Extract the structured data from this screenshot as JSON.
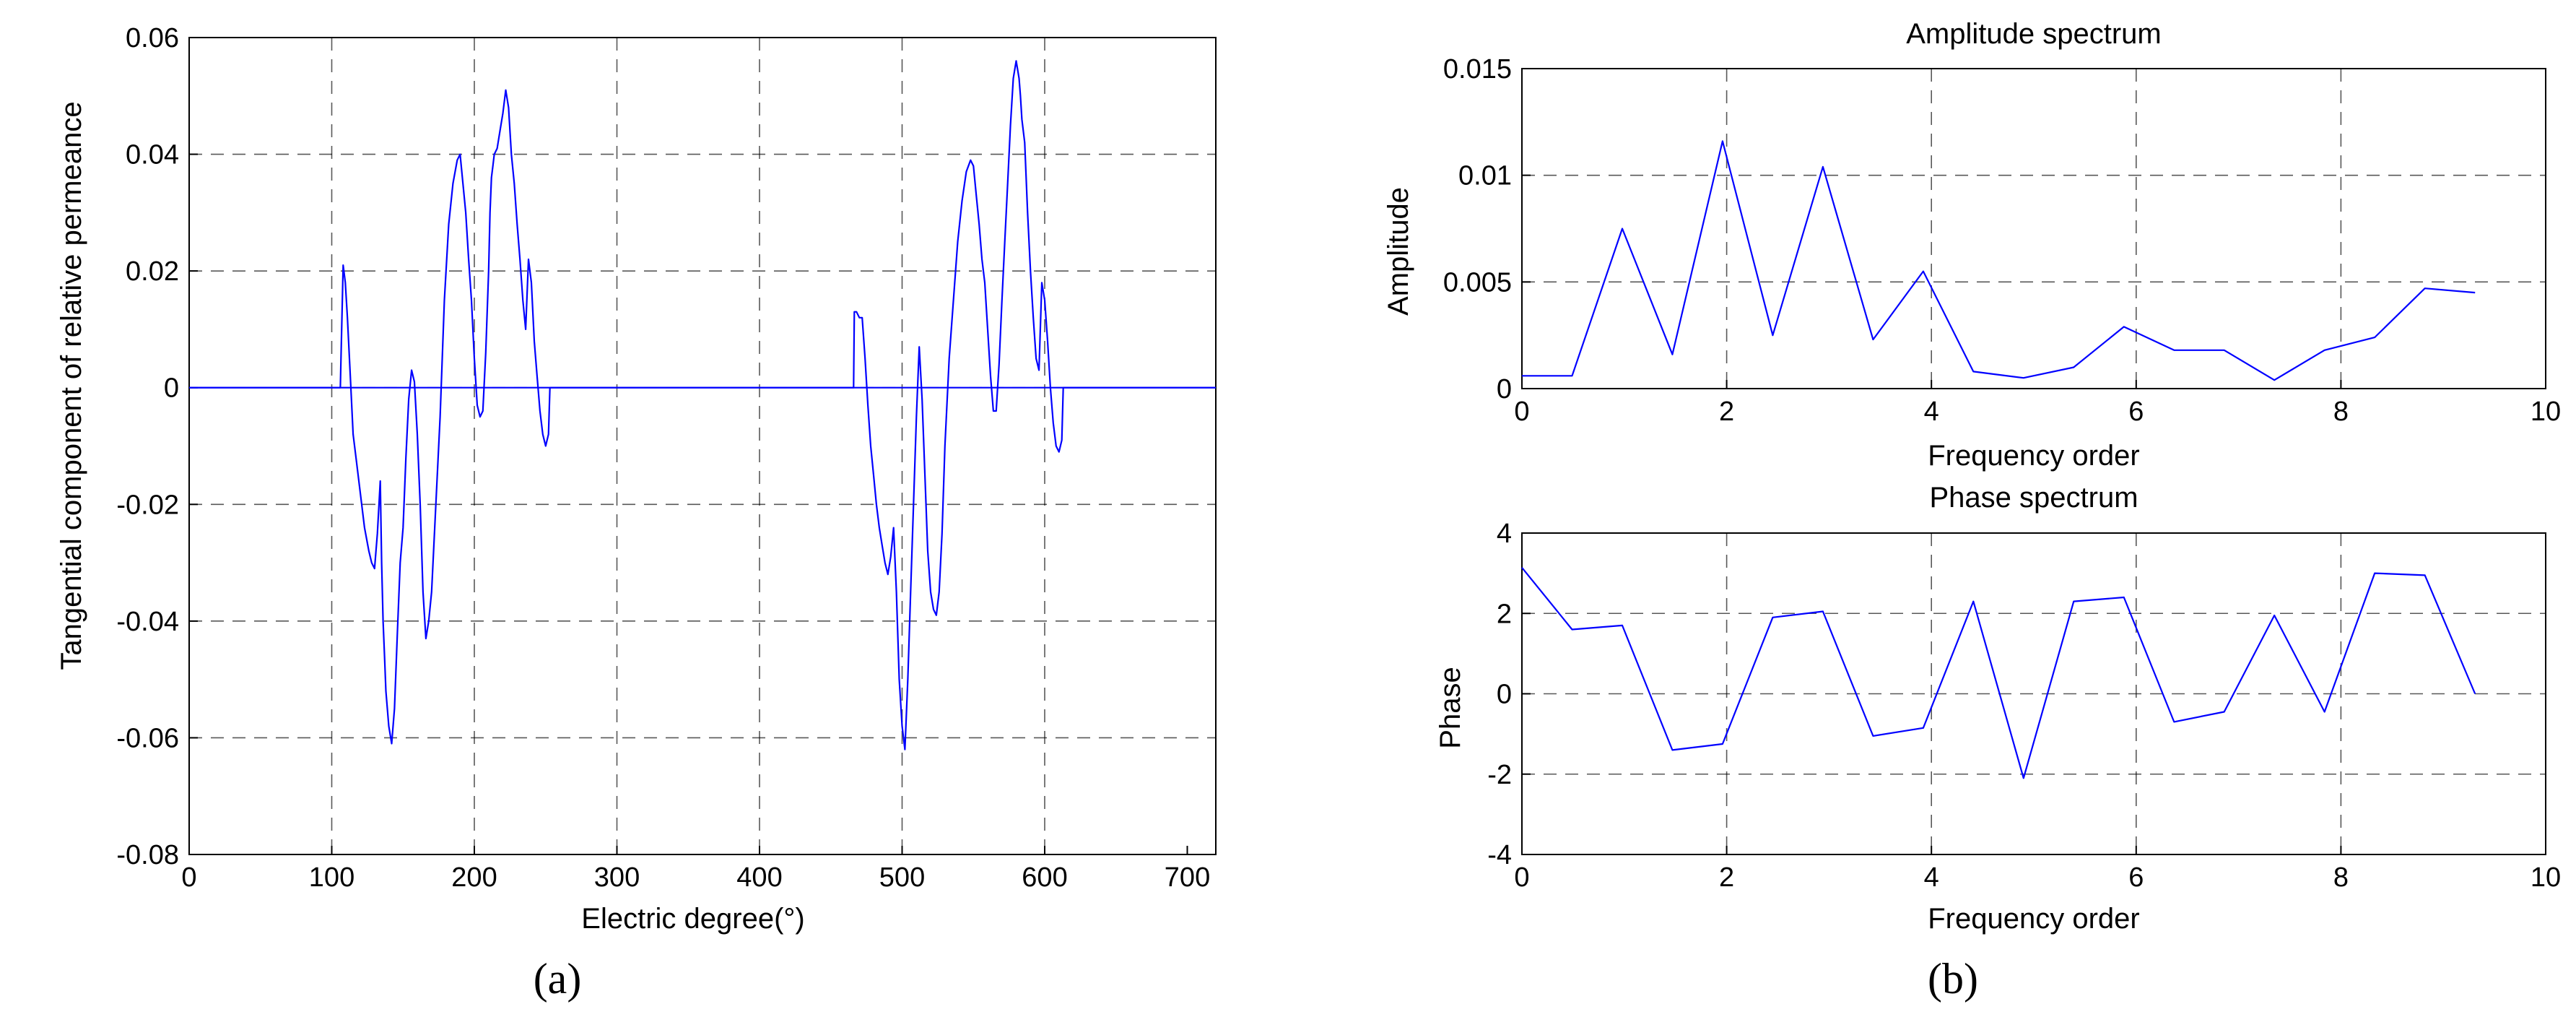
{
  "chart_data": [
    {
      "id": "a",
      "type": "line",
      "panel_label": "(a)",
      "title": "",
      "xlabel": "Electric degree(°)",
      "ylabel": "Tangential component of relative permeance",
      "xlim": [
        0,
        720
      ],
      "ylim": [
        -0.08,
        0.06
      ],
      "xticks": [
        0,
        100,
        200,
        300,
        400,
        500,
        600,
        700
      ],
      "yticks": [
        -0.08,
        -0.06,
        -0.04,
        -0.02,
        0,
        0.02,
        0.04,
        0.06
      ],
      "ytick_labels": [
        "-0.08",
        "-0.06",
        "-0.04",
        "-0.02",
        "0",
        "0.02",
        "0.04",
        "0.06"
      ],
      "grid": true,
      "series": [
        {
          "color": "#0000ff",
          "x": [
            0,
            106,
            106.5,
            108,
            109.5,
            111,
            113,
            115,
            117,
            120,
            123,
            126,
            128,
            130,
            132,
            134,
            135,
            136,
            137,
            138,
            140,
            142,
            144,
            146,
            148,
            150,
            152,
            154,
            156,
            158,
            160,
            162,
            164,
            166,
            168,
            170,
            173,
            176,
            179,
            182,
            185,
            188,
            190,
            192,
            194,
            196,
            198,
            200,
            202,
            204,
            206,
            208,
            210,
            211,
            212,
            213,
            214,
            216,
            218,
            220,
            222,
            224,
            226,
            228,
            230,
            232,
            234,
            236,
            238,
            240,
            242,
            244,
            246,
            248,
            250,
            252,
            253,
            720
          ],
          "y": [
            0,
            0,
            0.005,
            0.021,
            0.018,
            0.012,
            0.002,
            -0.008,
            -0.012,
            -0.018,
            -0.024,
            -0.028,
            -0.03,
            -0.031,
            -0.025,
            -0.016,
            -0.03,
            -0.04,
            -0.046,
            -0.052,
            -0.058,
            -0.061,
            -0.055,
            -0.042,
            -0.03,
            -0.024,
            -0.012,
            -0.002,
            0.003,
            0.001,
            -0.008,
            -0.02,
            -0.035,
            -0.043,
            -0.04,
            -0.035,
            -0.02,
            -0.005,
            0.015,
            0.028,
            0.035,
            0.039,
            0.04,
            0.035,
            0.03,
            0.022,
            0.015,
            0.005,
            -0.003,
            -0.005,
            -0.004,
            0.006,
            0.02,
            0.03,
            0.036,
            0.038,
            0.04,
            0.041,
            0.044,
            0.047,
            0.051,
            0.048,
            0.04,
            0.035,
            0.028,
            0.022,
            0.015,
            0.01,
            0.022,
            0.018,
            0.008,
            0.002,
            -0.004,
            -0.008,
            -0.01,
            -0.008,
            0,
            0
          ]
        },
        {
          "color": "#0000ff",
          "x": [
            0,
            466,
            466.5,
            468,
            470,
            472,
            474,
            476,
            478,
            480,
            482,
            484,
            486,
            488,
            490,
            492,
            494,
            496,
            498,
            500,
            502,
            504,
            506,
            508,
            510,
            512,
            514,
            516,
            518,
            520,
            522,
            524,
            526,
            528,
            530,
            533,
            536,
            539,
            542,
            545,
            548,
            550,
            552,
            554,
            556,
            558,
            560,
            562,
            564,
            566,
            568,
            570,
            572,
            574,
            576,
            578,
            580,
            582,
            583,
            584,
            586,
            588,
            590,
            592,
            594,
            596,
            598,
            600,
            602,
            604,
            606,
            608,
            610,
            612,
            613,
            720
          ],
          "y": [
            0,
            0,
            0.013,
            0.013,
            0.012,
            0.012,
            0.005,
            -0.003,
            -0.01,
            -0.015,
            -0.02,
            -0.024,
            -0.027,
            -0.03,
            -0.032,
            -0.029,
            -0.024,
            -0.035,
            -0.05,
            -0.058,
            -0.062,
            -0.05,
            -0.035,
            -0.02,
            -0.005,
            0.007,
            -0.002,
            -0.015,
            -0.028,
            -0.035,
            -0.038,
            -0.039,
            -0.035,
            -0.025,
            -0.01,
            0.005,
            0.015,
            0.025,
            0.032,
            0.037,
            0.039,
            0.038,
            0.033,
            0.028,
            0.022,
            0.018,
            0.01,
            0.002,
            -0.004,
            -0.004,
            0.004,
            0.015,
            0.025,
            0.035,
            0.045,
            0.053,
            0.056,
            0.053,
            0.05,
            0.046,
            0.042,
            0.03,
            0.02,
            0.012,
            0.005,
            0.003,
            0.018,
            0.015,
            0.008,
            0,
            -0.006,
            -0.01,
            -0.011,
            -0.009,
            0,
            0
          ]
        }
      ]
    },
    {
      "id": "b-amplitude",
      "type": "line",
      "panel_label": "(b)",
      "title": "Amplitude spectrum",
      "xlabel": "Frequency order",
      "ylabel": "Amplitude",
      "xlim": [
        0,
        10
      ],
      "ylim": [
        0,
        0.015
      ],
      "xticks": [
        0,
        2,
        4,
        6,
        8,
        10
      ],
      "yticks": [
        0,
        0.005,
        0.01,
        0.015
      ],
      "ytick_labels": [
        "0",
        "0.005",
        "0.01",
        "0.015"
      ],
      "grid": true,
      "series": [
        {
          "color": "#0000ff",
          "x": [
            0,
            0.49,
            0.98,
            1.47,
            1.96,
            2.45,
            2.94,
            3.43,
            3.92,
            4.41,
            4.9,
            5.39,
            5.88,
            6.37,
            6.86,
            7.35,
            7.84,
            8.33,
            8.82,
            9.31
          ],
          "y": [
            0.0006,
            0.0006,
            0.0075,
            0.0016,
            0.0116,
            0.0025,
            0.0104,
            0.0023,
            0.0055,
            0.0008,
            0.0005,
            0.001,
            0.0029,
            0.0018,
            0.0018,
            0.0004,
            0.0018,
            0.0024,
            0.0047,
            0.0045
          ]
        }
      ]
    },
    {
      "id": "b-phase",
      "type": "line",
      "title": "Phase spectrum",
      "xlabel": "Frequency order",
      "ylabel": "Phase",
      "xlim": [
        0,
        10
      ],
      "ylim": [
        -4,
        4
      ],
      "xticks": [
        0,
        2,
        4,
        6,
        8,
        10
      ],
      "yticks": [
        -4,
        -2,
        0,
        2,
        4
      ],
      "ytick_labels": [
        "-4",
        "-2",
        "0",
        "2",
        "4"
      ],
      "grid": true,
      "series": [
        {
          "color": "#0000ff",
          "x": [
            0,
            0.49,
            0.98,
            1.47,
            1.96,
            2.45,
            2.94,
            3.43,
            3.92,
            4.41,
            4.9,
            5.39,
            5.88,
            6.37,
            6.86,
            7.35,
            7.84,
            8.33,
            8.82,
            9.31
          ],
          "y": [
            3.14,
            1.6,
            1.7,
            -1.4,
            -1.25,
            1.9,
            2.05,
            -1.05,
            -0.85,
            2.3,
            -2.1,
            2.3,
            2.4,
            -0.7,
            -0.45,
            1.95,
            -0.45,
            3.0,
            2.95,
            0
          ]
        }
      ]
    }
  ]
}
